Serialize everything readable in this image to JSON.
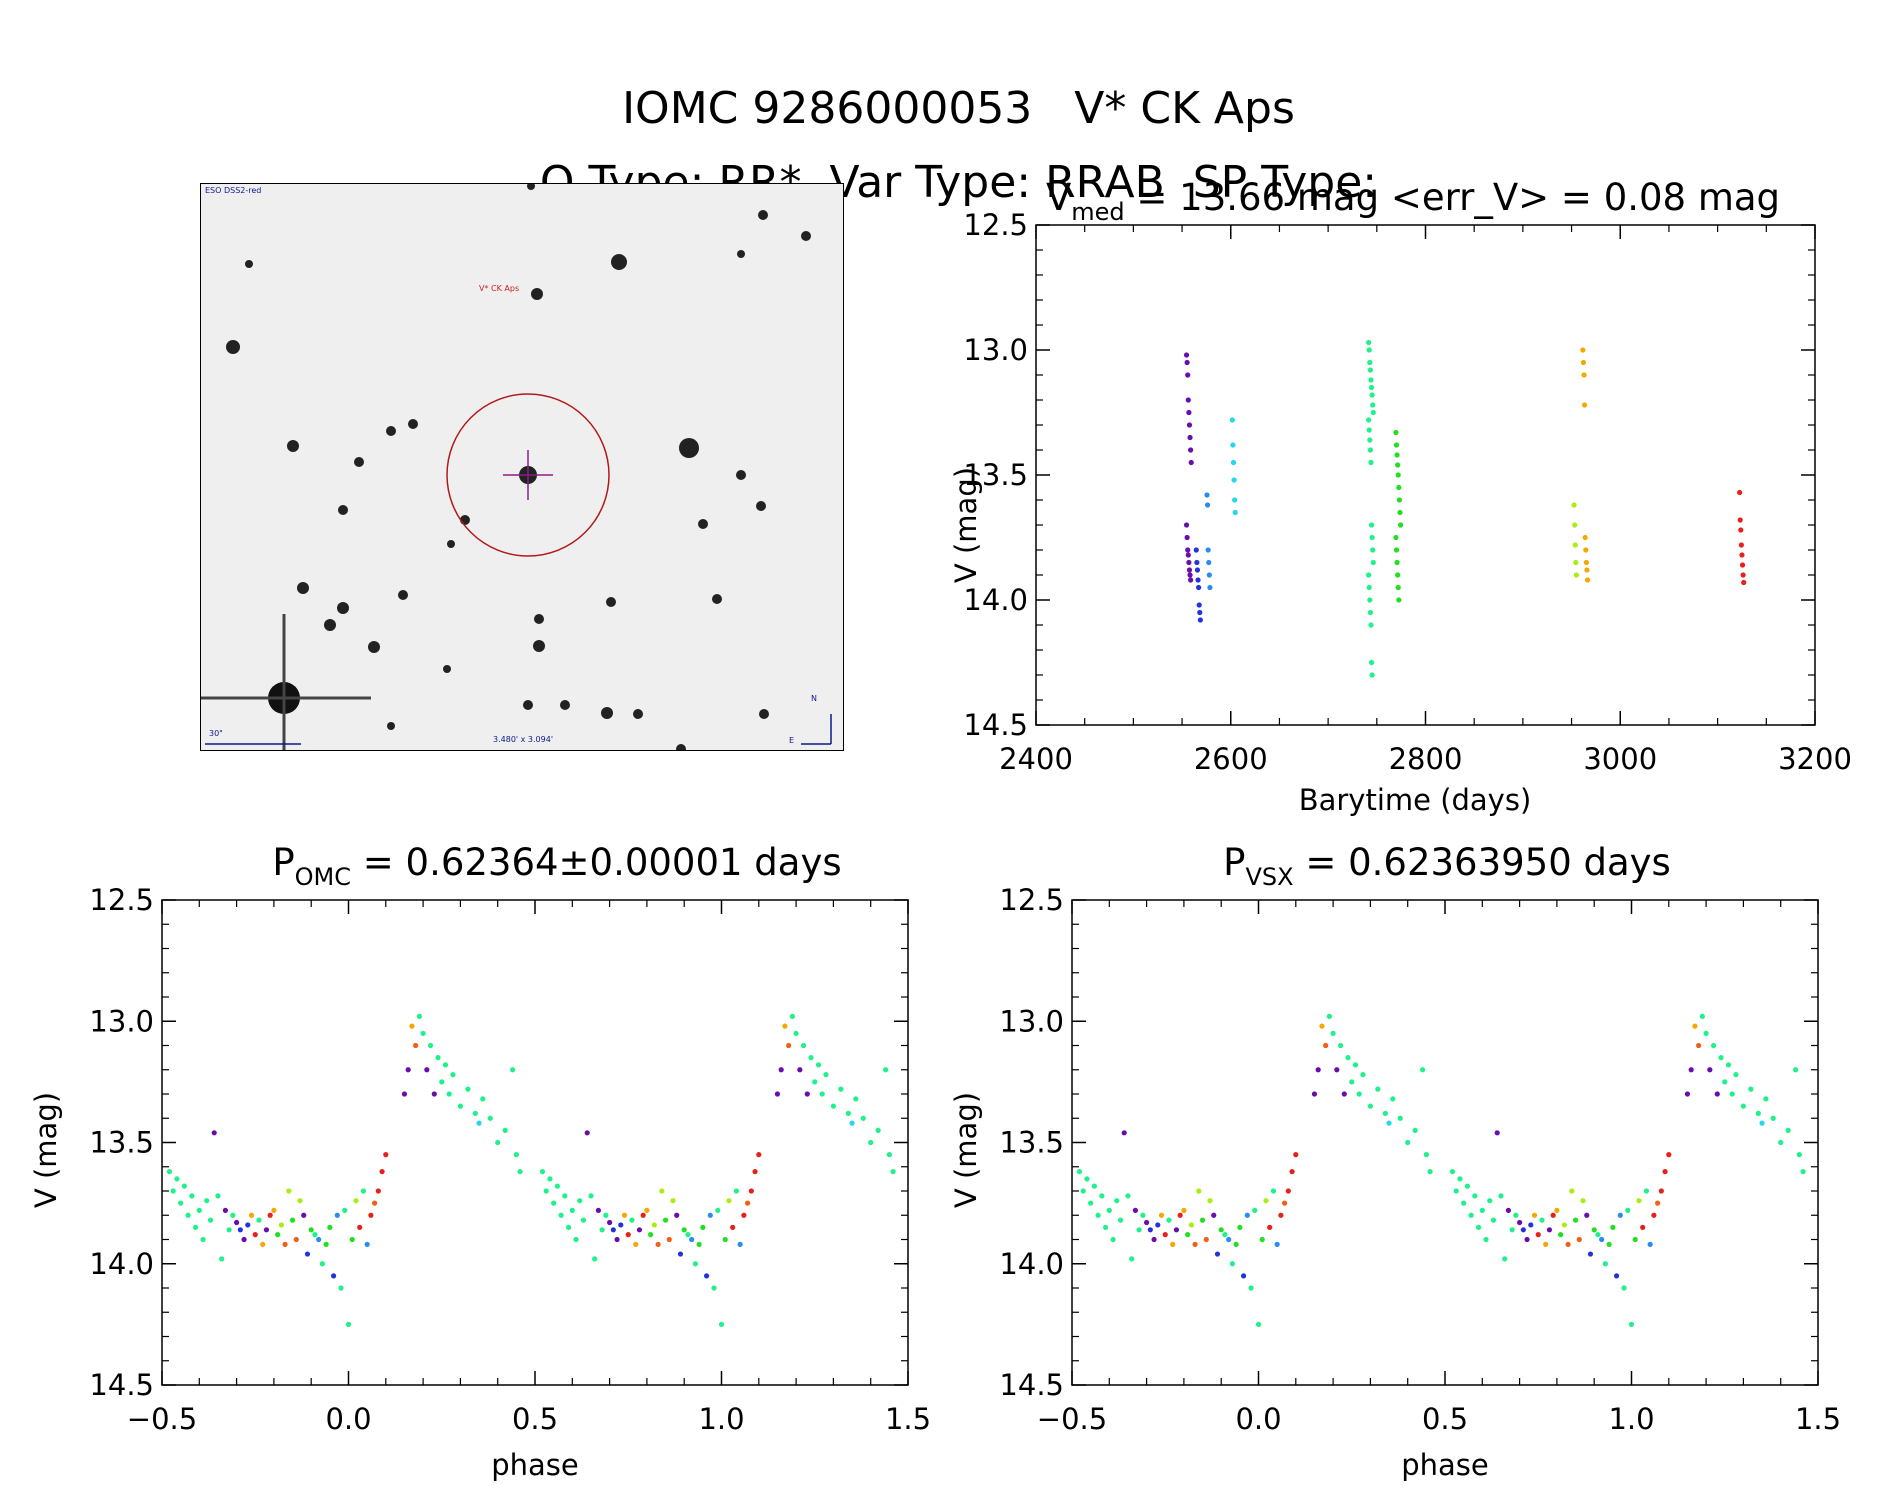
{
  "header": {
    "line1_id": "IOMC 9286000053",
    "line1_name": "V* CK Aps",
    "line2_otype": "O Type: RR*",
    "line2_vartype": "Var Type: RRAB",
    "line2_sptype": "SP Type:"
  },
  "finder": {
    "survey_label": "ESO DSS2-red",
    "target_label": "V* CK Aps",
    "scale_label": "30\"",
    "fov_label": "3.480' x 3.094'",
    "north_label": "N",
    "east_label": "E"
  },
  "colors": {
    "purple": "#6a0dad",
    "blue": "#2233dd",
    "lightblue": "#2a8cf0",
    "cyan": "#22d7ee",
    "springgreen": "#1ef28a",
    "green": "#20e020",
    "yellowgreen": "#a8ee12",
    "orange": "#f5a800",
    "red": "#e8201c",
    "darkorange": "#f06018",
    "black": "#000000"
  },
  "chart_data": [
    {
      "type": "scatter",
      "id": "lightcurve",
      "title_main": "V",
      "title_sub": "med",
      "title_rest": " = 13.66 mag <err_V> = 0.08 mag",
      "xlabel": "Barytime (days)",
      "ylabel": "V (mag)",
      "xlim": [
        2400,
        3200
      ],
      "ylim": [
        14.5,
        12.5
      ],
      "xticks": [
        "2400",
        "2600",
        "2800",
        "3000",
        "3200"
      ],
      "yticks": [
        "12.5",
        "13.0",
        "13.5",
        "14.0",
        "14.5"
      ],
      "groups": [
        {
          "color": "purple",
          "x": 2557,
          "ys": [
            13.02,
            13.05,
            13.1,
            13.2,
            13.25,
            13.3,
            13.35,
            13.4,
            13.45,
            13.7,
            13.75,
            13.8,
            13.82,
            13.85,
            13.88,
            13.9,
            13.92
          ]
        },
        {
          "color": "blue",
          "x": 2567,
          "ys": [
            13.8,
            13.85,
            13.88,
            13.92,
            13.95,
            14.02,
            14.05,
            14.08
          ]
        },
        {
          "color": "lightblue",
          "x": 2578,
          "ys": [
            13.58,
            13.62,
            13.8,
            13.85,
            13.9,
            13.95
          ]
        },
        {
          "color": "cyan",
          "x": 2604,
          "ys": [
            13.28,
            13.38,
            13.45,
            13.52,
            13.6,
            13.65
          ]
        },
        {
          "color": "springgreen",
          "x": 2744,
          "ys": [
            12.97,
            13.0,
            13.05,
            13.08,
            13.12,
            13.15,
            13.18,
            13.22,
            13.25,
            13.28,
            13.32,
            13.36,
            13.4,
            13.45,
            13.7,
            13.75,
            13.8,
            13.85,
            13.9,
            13.95,
            14.0,
            14.05,
            14.1,
            14.25,
            14.3
          ]
        },
        {
          "color": "green",
          "x": 2772,
          "ys": [
            13.33,
            13.38,
            13.42,
            13.46,
            13.5,
            13.55,
            13.6,
            13.65,
            13.7,
            13.75,
            13.8,
            13.85,
            13.9,
            13.95,
            14.0
          ]
        },
        {
          "color": "yellowgreen",
          "x": 2955,
          "ys": [
            13.62,
            13.7,
            13.78,
            13.85,
            13.9
          ]
        },
        {
          "color": "orange",
          "x": 2964,
          "ys": [
            13.0,
            13.05,
            13.1,
            13.22,
            13.75,
            13.8,
            13.85,
            13.88,
            13.92
          ]
        },
        {
          "color": "red",
          "x": 3125,
          "ys": [
            13.57,
            13.68,
            13.72,
            13.78,
            13.82,
            13.86,
            13.9,
            13.93
          ]
        }
      ]
    },
    {
      "type": "scatter",
      "id": "phase_omc",
      "title_main": "P",
      "title_sub": "OMC",
      "title_rest": " = 0.62364±0.00001 days",
      "xlabel": "phase",
      "ylabel": "V (mag)",
      "xlim": [
        -0.5,
        1.5
      ],
      "ylim": [
        14.5,
        12.5
      ],
      "xticks": [
        "−0.5",
        "0.0",
        "0.5",
        "1.0",
        "1.5"
      ],
      "yticks": [
        "12.5",
        "13.0",
        "13.5",
        "14.0",
        "14.5"
      ],
      "points": [
        [
          -0.48,
          13.62,
          "springgreen"
        ],
        [
          -0.47,
          13.7,
          "springgreen"
        ],
        [
          -0.46,
          13.65,
          "springgreen"
        ],
        [
          -0.45,
          13.75,
          "springgreen"
        ],
        [
          -0.44,
          13.68,
          "springgreen"
        ],
        [
          -0.43,
          13.8,
          "springgreen"
        ],
        [
          -0.42,
          13.72,
          "springgreen"
        ],
        [
          -0.41,
          13.85,
          "springgreen"
        ],
        [
          -0.4,
          13.78,
          "springgreen"
        ],
        [
          -0.39,
          13.9,
          "springgreen"
        ],
        [
          -0.38,
          13.74,
          "springgreen"
        ],
        [
          -0.37,
          13.82,
          "springgreen"
        ],
        [
          -0.36,
          13.46,
          "purple"
        ],
        [
          -0.35,
          13.72,
          "springgreen"
        ],
        [
          -0.34,
          13.98,
          "springgreen"
        ],
        [
          -0.33,
          13.78,
          "purple"
        ],
        [
          -0.32,
          13.86,
          "springgreen"
        ],
        [
          -0.31,
          13.8,
          "springgreen"
        ],
        [
          -0.3,
          13.83,
          "purple"
        ],
        [
          -0.29,
          13.86,
          "blue"
        ],
        [
          -0.28,
          13.9,
          "purple"
        ],
        [
          -0.27,
          13.84,
          "blue"
        ],
        [
          -0.26,
          13.8,
          "orange"
        ],
        [
          -0.25,
          13.88,
          "red"
        ],
        [
          -0.24,
          13.82,
          "springgreen"
        ],
        [
          -0.23,
          13.92,
          "orange"
        ],
        [
          -0.22,
          13.86,
          "purple"
        ],
        [
          -0.21,
          13.8,
          "red"
        ],
        [
          -0.2,
          13.78,
          "orange"
        ],
        [
          -0.19,
          13.88,
          "green"
        ],
        [
          -0.18,
          13.84,
          "yellowgreen"
        ],
        [
          -0.17,
          13.92,
          "darkorange"
        ],
        [
          -0.16,
          13.7,
          "yellowgreen"
        ],
        [
          -0.15,
          13.82,
          "green"
        ],
        [
          -0.14,
          13.9,
          "darkorange"
        ],
        [
          -0.13,
          13.74,
          "yellowgreen"
        ],
        [
          -0.12,
          13.8,
          "purple"
        ],
        [
          -0.11,
          13.96,
          "blue"
        ],
        [
          -0.1,
          13.86,
          "green"
        ],
        [
          -0.09,
          13.88,
          "springgreen"
        ],
        [
          -0.08,
          13.9,
          "lightblue"
        ],
        [
          -0.07,
          14.0,
          "springgreen"
        ],
        [
          -0.06,
          13.92,
          "green"
        ],
        [
          -0.05,
          13.85,
          "green"
        ],
        [
          -0.04,
          14.05,
          "blue"
        ],
        [
          -0.03,
          13.8,
          "lightblue"
        ],
        [
          -0.02,
          14.1,
          "springgreen"
        ],
        [
          -0.01,
          13.78,
          "springgreen"
        ],
        [
          0.0,
          14.25,
          "springgreen"
        ],
        [
          0.01,
          13.9,
          "green"
        ],
        [
          0.02,
          13.74,
          "yellowgreen"
        ],
        [
          0.03,
          13.85,
          "red"
        ],
        [
          0.04,
          13.7,
          "springgreen"
        ],
        [
          0.05,
          13.92,
          "lightblue"
        ],
        [
          0.06,
          13.8,
          "red"
        ],
        [
          0.07,
          13.75,
          "darkorange"
        ],
        [
          0.08,
          13.7,
          "red"
        ],
        [
          0.09,
          13.62,
          "red"
        ],
        [
          0.1,
          13.55,
          "red"
        ],
        [
          0.15,
          13.3,
          "purple"
        ],
        [
          0.16,
          13.2,
          "purple"
        ],
        [
          0.17,
          13.02,
          "orange"
        ],
        [
          0.18,
          13.1,
          "darkorange"
        ],
        [
          0.19,
          12.98,
          "springgreen"
        ],
        [
          0.2,
          13.05,
          "springgreen"
        ],
        [
          0.21,
          13.2,
          "purple"
        ],
        [
          0.22,
          13.1,
          "springgreen"
        ],
        [
          0.23,
          13.3,
          "purple"
        ],
        [
          0.24,
          13.15,
          "springgreen"
        ],
        [
          0.25,
          13.25,
          "springgreen"
        ],
        [
          0.26,
          13.18,
          "springgreen"
        ],
        [
          0.27,
          13.3,
          "springgreen"
        ],
        [
          0.28,
          13.22,
          "springgreen"
        ],
        [
          0.3,
          13.35,
          "springgreen"
        ],
        [
          0.32,
          13.28,
          "springgreen"
        ],
        [
          0.34,
          13.38,
          "springgreen"
        ],
        [
          0.35,
          13.42,
          "cyan"
        ],
        [
          0.36,
          13.32,
          "springgreen"
        ],
        [
          0.38,
          13.4,
          "springgreen"
        ],
        [
          0.4,
          13.5,
          "springgreen"
        ],
        [
          0.42,
          13.45,
          "springgreen"
        ],
        [
          0.44,
          13.2,
          "springgreen"
        ],
        [
          0.45,
          13.55,
          "springgreen"
        ],
        [
          0.46,
          13.62,
          "springgreen"
        ]
      ]
    },
    {
      "type": "scatter",
      "id": "phase_vsx",
      "title_main": "P",
      "title_sub": "VSX",
      "title_rest": " = 0.62363950 days",
      "xlabel": "phase",
      "ylabel": "V (mag)",
      "xlim": [
        -0.5,
        1.5
      ],
      "ylim": [
        14.5,
        12.5
      ],
      "xticks": [
        "−0.5",
        "0.0",
        "0.5",
        "1.0",
        "1.5"
      ],
      "yticks": [
        "12.5",
        "13.0",
        "13.5",
        "14.0",
        "14.5"
      ],
      "points": "same_as_phase_omc"
    }
  ]
}
